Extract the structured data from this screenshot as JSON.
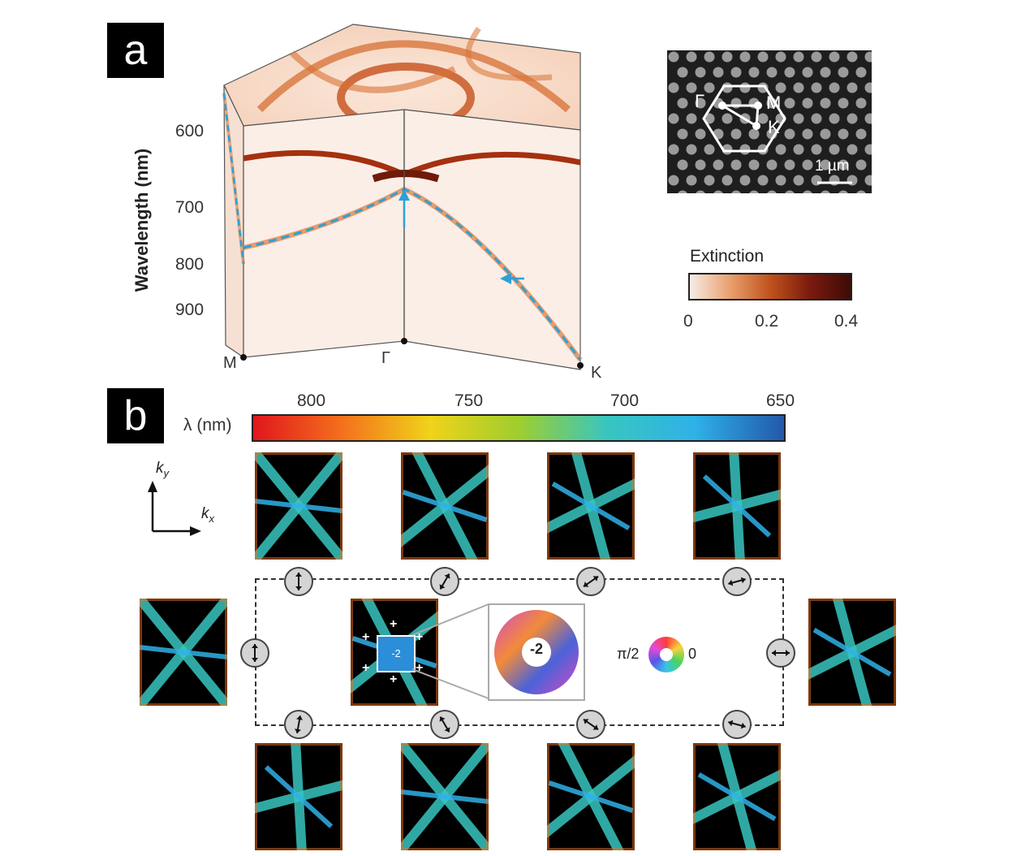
{
  "panel_a": {
    "label": "a",
    "y_axis_label": "Wavelength (nm)",
    "y_ticks": [
      "600",
      "700",
      "800",
      "900"
    ],
    "k_points": {
      "left": "M",
      "center": "Γ",
      "right": "K"
    },
    "inset": {
      "labels": [
        "Γ",
        "M",
        "K"
      ],
      "scale_bar": "1 µm"
    },
    "colorbar": {
      "title": "Extinction",
      "ticks": [
        "0",
        "0.2",
        "0.4"
      ],
      "colors": [
        "#f7ece6",
        "#e9a06e",
        "#c0521c",
        "#7a1a0e",
        "#3e0c06"
      ]
    }
  },
  "panel_b": {
    "label": "b",
    "colorbar_label": "λ (nm)",
    "colorbar_ticks": [
      "800",
      "750",
      "700",
      "650"
    ],
    "colorbar_colors": [
      "#e0161d",
      "#f4701c",
      "#f0d31a",
      "#9fce2e",
      "#38c6c0",
      "#2fb1e8",
      "#2358a8"
    ],
    "axes": {
      "ky": "k",
      "ky_sub": "y",
      "kx": "k",
      "kx_sub": "x"
    },
    "center_charge": "-2",
    "zoom_charge": "-2",
    "phase_labels": {
      "left": "π/2",
      "right": "0"
    },
    "plus_marker": "+"
  }
}
